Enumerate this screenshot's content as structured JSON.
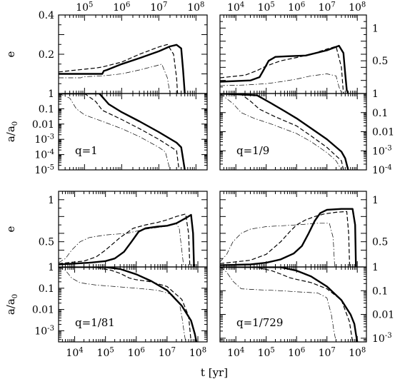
{
  "figure": {
    "xlabel": "t [yr]",
    "curve_styles": [
      "solid-thick",
      "dashed",
      "dash-dot"
    ]
  },
  "chart_data": [
    {
      "type": "line",
      "panel": "top-left",
      "label": "q=1",
      "x_scale": "log",
      "x_range": [
        20000,
        200000000
      ],
      "x_ticks_top": [
        "10^5",
        "10^6",
        "10^7",
        "10^8"
      ],
      "x_ticks_bottom": [],
      "e_panel": {
        "ylabel": "e",
        "yscale": "linear",
        "ylim": [
          0,
          0.4
        ],
        "yticks": [
          "0.2",
          "0.4"
        ],
        "ytick_side": "left",
        "series": [
          {
            "style": "solid-thick",
            "x": [
              20000,
              300000,
              330000,
              400000,
              1000000,
              3000000,
              10000000,
              20000000,
              30000000,
              40000000,
              45000000,
              50000000
            ],
            "y": [
              0.1,
              0.1,
              0.115,
              0.12,
              0.15,
              0.18,
              0.215,
              0.24,
              0.248,
              0.23,
              0.12,
              0.0
            ]
          },
          {
            "style": "dashed",
            "x": [
              20000,
              200000,
              300000,
              1000000,
              3000000,
              10000000,
              17000000,
              25000000,
              30000000,
              32000000
            ],
            "y": [
              0.11,
              0.13,
              0.135,
              0.16,
              0.2,
              0.237,
              0.25,
              0.2,
              0.08,
              0.0
            ]
          },
          {
            "style": "dash-dot",
            "x": [
              20000,
              80000,
              90000,
              300000,
              1000000,
              3000000,
              8000000,
              12000000,
              17000000,
              20000000
            ],
            "y": [
              0.08,
              0.08,
              0.085,
              0.09,
              0.1,
              0.12,
              0.14,
              0.15,
              0.08,
              0.0
            ]
          }
        ]
      },
      "a_panel": {
        "ylabel": "a/a_0",
        "yscale": "log",
        "ylim": [
          1e-05,
          1
        ],
        "yticks": [
          "1",
          "0.1",
          "0.01",
          "10^-3",
          "10^-4",
          "10^-5"
        ],
        "ytick_side": "left",
        "series": [
          {
            "style": "solid-thick",
            "x": [
              20000,
              250000,
              300000,
              450000,
              1000000,
              3000000,
              10000000,
              30000000,
              40000000,
              50000000
            ],
            "y": [
              1,
              1,
              0.6,
              0.2,
              0.06,
              0.015,
              0.003,
              0.0006,
              0.0003,
              1e-05
            ]
          },
          {
            "style": "dashed",
            "x": [
              20000,
              100000,
              200000,
              300000,
              1000000,
              3000000,
              10000000,
              30000000,
              35000000
            ],
            "y": [
              1,
              1,
              0.3,
              0.08,
              0.02,
              0.005,
              0.001,
              0.00018,
              1e-05
            ]
          },
          {
            "style": "dash-dot",
            "x": [
              20000,
              40000,
              60000,
              100000,
              300000,
              1000000,
              3000000,
              10000000,
              15000000,
              20000000
            ],
            "y": [
              1,
              0.5,
              0.1,
              0.04,
              0.015,
              0.005,
              0.0015,
              0.0003,
              0.00015,
              1e-05
            ]
          }
        ]
      }
    },
    {
      "type": "line",
      "panel": "top-right",
      "label": "q=1/9",
      "x_scale": "log",
      "x_range": [
        3000,
        200000000
      ],
      "x_ticks_top": [
        "10^4",
        "10^5",
        "10^6",
        "10^7",
        "10^8"
      ],
      "x_ticks_bottom": [],
      "e_panel": {
        "ylabel": "",
        "yscale": "linear",
        "ylim": [
          0,
          1.2
        ],
        "yticks": [
          "0.5",
          "1"
        ],
        "ytick_side": "right",
        "series": [
          {
            "style": "solid-thick",
            "x": [
              3000,
              30000,
              60000,
              80000,
              120000,
              200000,
              500000,
              2000000,
              10000000,
              25000000,
              35000000,
              40000000,
              45000000,
              50000000
            ],
            "y": [
              0.18,
              0.2,
              0.25,
              0.35,
              0.5,
              0.56,
              0.57,
              0.58,
              0.66,
              0.73,
              0.62,
              0.3,
              0.05,
              0.0
            ]
          },
          {
            "style": "dashed",
            "x": [
              3000,
              20000,
              50000,
              100000,
              300000,
              1000000,
              3000000,
              10000000,
              20000000,
              30000000,
              35000000
            ],
            "y": [
              0.24,
              0.28,
              0.35,
              0.42,
              0.5,
              0.55,
              0.6,
              0.68,
              0.72,
              0.4,
              0.0
            ]
          },
          {
            "style": "dash-dot",
            "x": [
              3000,
              20000,
              100000,
              300000,
              1000000,
              3000000,
              10000000,
              20000000,
              25000000,
              30000000
            ],
            "y": [
              0.12,
              0.13,
              0.15,
              0.18,
              0.22,
              0.27,
              0.3,
              0.27,
              0.1,
              0.0
            ]
          }
        ]
      },
      "a_panel": {
        "ylabel": "",
        "yscale": "log",
        "ylim": [
          0.0001,
          1
        ],
        "yticks": [
          "1",
          "0.1",
          "0.01",
          "10^-3",
          "10^-4"
        ],
        "ytick_side": "right",
        "series": [
          {
            "style": "solid-thick",
            "x": [
              3000,
              50000,
              150000,
              400000,
              1000000,
              3000000,
              10000000,
              30000000,
              40000000,
              50000000
            ],
            "y": [
              1,
              0.8,
              0.3,
              0.12,
              0.05,
              0.015,
              0.004,
              0.0009,
              0.0004,
              0.0001
            ]
          },
          {
            "style": "dashed",
            "x": [
              3000,
              15000,
              30000,
              60000,
              200000,
              1000000,
              3000000,
              10000000,
              30000000,
              35000000
            ],
            "y": [
              1,
              0.9,
              0.4,
              0.15,
              0.06,
              0.02,
              0.006,
              0.0015,
              0.0003,
              0.0001
            ]
          },
          {
            "style": "dash-dot",
            "x": [
              3000,
              8000,
              15000,
              40000,
              150000,
              1000000,
              3000000,
              10000000,
              20000000,
              30000000
            ],
            "y": [
              1,
              0.3,
              0.1,
              0.05,
              0.025,
              0.008,
              0.003,
              0.0008,
              0.0003,
              0.0001
            ]
          }
        ]
      }
    },
    {
      "type": "line",
      "panel": "bottom-left",
      "label": "q=1/81",
      "x_scale": "log",
      "x_range": [
        3000,
        200000000
      ],
      "x_ticks_top": [],
      "x_ticks_bottom": [
        "10^4",
        "10^5",
        "10^6",
        "10^7",
        "10^8"
      ],
      "e_panel": {
        "ylabel": "e",
        "yscale": "linear",
        "ylim": [
          0.2,
          1.1
        ],
        "yticks": [
          "0.5",
          "1"
        ],
        "ytick_side": "left",
        "series": [
          {
            "style": "solid-thick",
            "x": [
              3000,
              30000,
              100000,
              200000,
              400000,
              700000,
              1200000,
              2000000,
              5000000,
              10000000,
              20000000,
              40000000,
              60000000,
              70000000,
              75000000,
              80000000
            ],
            "y": [
              0.23,
              0.25,
              0.27,
              0.3,
              0.38,
              0.5,
              0.62,
              0.66,
              0.68,
              0.69,
              0.72,
              0.78,
              0.82,
              0.6,
              0.2,
              0.0
            ]
          },
          {
            "style": "dashed",
            "x": [
              3000,
              20000,
              50000,
              100000,
              300000,
              800000,
              2000000,
              5000000,
              10000000,
              20000000,
              40000000,
              50000000,
              55000000,
              60000000
            ],
            "y": [
              0.24,
              0.27,
              0.32,
              0.4,
              0.55,
              0.66,
              0.7,
              0.73,
              0.76,
              0.8,
              0.83,
              0.6,
              0.2,
              0.0
            ]
          },
          {
            "style": "dash-dot",
            "x": [
              3000,
              5000,
              8000,
              15000,
              30000,
              100000,
              500000,
              2000000,
              8000000,
              15000000,
              20000000,
              25000000,
              30000000,
              40000000
            ],
            "y": [
              0.25,
              0.3,
              0.4,
              0.5,
              0.55,
              0.58,
              0.6,
              0.65,
              0.68,
              0.7,
              0.72,
              0.65,
              0.4,
              0.0
            ]
          }
        ]
      },
      "a_panel": {
        "ylabel": "a/a_0",
        "yscale": "log",
        "ylim": [
          0.0003,
          1
        ],
        "yticks": [
          "1",
          "0.1",
          "0.01",
          "10^-3"
        ],
        "ytick_side": "left",
        "series": [
          {
            "style": "solid-thick",
            "x": [
              3000,
              100000,
              300000,
              1000000,
              3000000,
              10000000,
              30000000,
              60000000,
              80000000,
              90000000
            ],
            "y": [
              1,
              0.98,
              0.8,
              0.45,
              0.22,
              0.08,
              0.015,
              0.003,
              0.0007,
              0.0003
            ]
          },
          {
            "style": "dashed",
            "x": [
              3000,
              50000,
              150000,
              300000,
              600000,
              1000000,
              3000000,
              10000000,
              30000000,
              50000000,
              60000000
            ],
            "y": [
              1,
              0.95,
              0.7,
              0.5,
              0.3,
              0.25,
              0.2,
              0.12,
              0.03,
              0.005,
              0.0003
            ]
          },
          {
            "style": "dash-dot",
            "x": [
              3000,
              5000,
              8000,
              15000,
              50000,
              200000,
              1000000,
              5000000,
              15000000,
              25000000,
              30000000,
              35000000,
              40000000
            ],
            "y": [
              1,
              0.7,
              0.3,
              0.18,
              0.14,
              0.12,
              0.1,
              0.08,
              0.05,
              0.02,
              0.005,
              0.001,
              0.0003
            ]
          }
        ]
      }
    },
    {
      "type": "line",
      "panel": "bottom-right",
      "label": "q=1/729",
      "x_scale": "log",
      "x_range": [
        3000,
        200000000
      ],
      "x_ticks_top": [],
      "x_ticks_bottom": [
        "10^4",
        "10^5",
        "10^6",
        "10^7",
        "10^8"
      ],
      "e_panel": {
        "ylabel": "",
        "yscale": "linear",
        "ylim": [
          0.2,
          1.1
        ],
        "yticks": [
          "0.5",
          "1"
        ],
        "ytick_side": "right",
        "series": [
          {
            "style": "solid-thick",
            "x": [
              3000,
              30000,
              100000,
              300000,
              800000,
              1500000,
              2500000,
              4000000,
              6000000,
              10000000,
              30000000,
              70000000,
              85000000,
              90000000,
              95000000
            ],
            "y": [
              0.22,
              0.23,
              0.25,
              0.29,
              0.36,
              0.45,
              0.6,
              0.75,
              0.84,
              0.88,
              0.89,
              0.89,
              0.7,
              0.2,
              0.0
            ]
          },
          {
            "style": "dashed",
            "x": [
              3000,
              30000,
              100000,
              300000,
              600000,
              1000000,
              2000000,
              4000000,
              8000000,
              20000000,
              45000000,
              52000000,
              56000000,
              60000000
            ],
            "y": [
              0.24,
              0.28,
              0.35,
              0.5,
              0.62,
              0.7,
              0.76,
              0.8,
              0.83,
              0.85,
              0.86,
              0.6,
              0.2,
              0.0
            ]
          },
          {
            "style": "dash-dot",
            "x": [
              3000,
              5000,
              8000,
              15000,
              30000,
              100000,
              1000000,
              5000000,
              12000000,
              16000000,
              18000000,
              20000000
            ],
            "y": [
              0.26,
              0.35,
              0.5,
              0.6,
              0.65,
              0.68,
              0.7,
              0.72,
              0.72,
              0.55,
              0.2,
              0.0
            ]
          }
        ]
      },
      "a_panel": {
        "ylabel": "",
        "yscale": "log",
        "ylim": [
          0.0007,
          1
        ],
        "yticks": [
          "1",
          "0.1",
          "0.01",
          "10^-3"
        ],
        "ytick_side": "right",
        "series": [
          {
            "style": "solid-thick",
            "x": [
              3000,
              300000,
              1000000,
              3000000,
              10000000,
              30000000,
              60000000,
              80000000,
              90000000,
              100000000
            ],
            "y": [
              1,
              0.98,
              0.7,
              0.4,
              0.15,
              0.04,
              0.01,
              0.004,
              0.0015,
              0.0007
            ]
          },
          {
            "style": "dashed",
            "x": [
              3000,
              50000,
              150000,
              300000,
              600000,
              1000000,
              3000000,
              10000000,
              30000000,
              55000000,
              70000000
            ],
            "y": [
              1,
              0.95,
              0.7,
              0.5,
              0.35,
              0.3,
              0.22,
              0.12,
              0.04,
              0.005,
              0.0007
            ]
          },
          {
            "style": "dash-dot",
            "x": [
              3000,
              5000,
              8000,
              15000,
              50000,
              300000,
              1000000,
              5000000,
              10000000,
              14000000,
              17000000,
              20000000
            ],
            "y": [
              1,
              0.6,
              0.25,
              0.12,
              0.11,
              0.1,
              0.09,
              0.08,
              0.05,
              0.01,
              0.002,
              0.0007
            ]
          }
        ]
      }
    }
  ]
}
